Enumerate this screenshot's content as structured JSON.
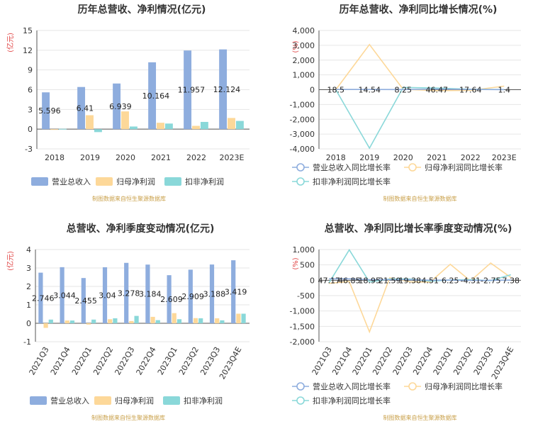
{
  "colors": {
    "revenue": "#8eadde",
    "net": "#fdd899",
    "deducted": "#8ad8d9"
  },
  "source_note": "制图数据来自恒生聚源数据库",
  "chart_data": [
    {
      "type": "bar",
      "title": "历年总营收、净利情况(亿元)",
      "ylabel": "(亿元)",
      "categories": [
        "2018",
        "2019",
        "2020",
        "2021",
        "2022",
        "2023E"
      ],
      "ylim": [
        -3,
        15
      ],
      "yticks": [
        "-3",
        "0",
        "3",
        "6",
        "9",
        "12",
        "15"
      ],
      "legend": [
        "营业总收入",
        "归母净利润",
        "扣非净利润"
      ],
      "series": [
        {
          "name": "营业总收入",
          "values": [
            5.596,
            6.41,
            6.939,
            10.164,
            11.957,
            12.124
          ]
        },
        {
          "name": "归母净利润",
          "values": [
            -0.05,
            2.12,
            2.7,
            0.97,
            0.5,
            1.7
          ]
        },
        {
          "name": "扣非净利润",
          "values": [
            0.05,
            -0.45,
            0.4,
            0.85,
            1.1,
            1.25
          ]
        }
      ],
      "data_labels": [
        "5.596",
        "6.41",
        "6.939",
        "10.164",
        "11.957",
        "12.124"
      ]
    },
    {
      "type": "line",
      "title": "历年总营收、净利同比增长情况(%)",
      "ylabel": "(%)",
      "categories": [
        "2018",
        "2019",
        "2020",
        "2021",
        "2022",
        "2023E"
      ],
      "ylim": [
        -4000,
        4000
      ],
      "yticks": [
        "-4,000",
        "-3,000",
        "-2,000",
        "-1,000",
        "0",
        "1,000",
        "2,000",
        "3,000",
        "4,000"
      ],
      "legend": [
        "营业总收入同比增长率",
        "归母净利润同比增长率",
        "扣非净利润同比增长率"
      ],
      "series": [
        {
          "name": "营业总收入同比增长率",
          "values": [
            18.5,
            14.54,
            8.25,
            46.47,
            17.64,
            1.4
          ]
        },
        {
          "name": "归母净利润同比增长率",
          "values": [
            0,
            3050,
            25,
            -64,
            -48,
            240
          ]
        },
        {
          "name": "扣非净利润同比增长率",
          "values": [
            0,
            -3950,
            150,
            110,
            30,
            12
          ]
        }
      ],
      "data_labels": [
        "18.5",
        "14.54",
        "8.25",
        "46.47",
        "17.64",
        "1.4"
      ]
    },
    {
      "type": "bar",
      "title": "总营收、净利季度变动情况(亿元)",
      "ylabel": "(亿元)",
      "categories": [
        "2021Q3",
        "2021Q4",
        "2022Q1",
        "2022Q2",
        "2022Q3",
        "2022Q4",
        "2023Q1",
        "2023Q2",
        "2023Q3",
        "2023Q4E"
      ],
      "ylim": [
        -1,
        4
      ],
      "yticks": [
        "-1",
        "0",
        "1",
        "2",
        "3",
        "4"
      ],
      "legend": [
        "营业总收入",
        "归母净利润",
        "扣非净利润"
      ],
      "series": [
        {
          "name": "营业总收入",
          "values": [
            2.746,
            3.044,
            2.455,
            3.04,
            3.278,
            3.184,
            2.609,
            2.909,
            3.188,
            3.419
          ]
        },
        {
          "name": "归母净利润",
          "values": [
            -0.25,
            0.15,
            -0.07,
            0.22,
            0.12,
            0.35,
            0.55,
            0.28,
            0.27,
            0.52
          ]
        },
        {
          "name": "扣非净利润",
          "values": [
            0.2,
            0.15,
            0.2,
            0.27,
            0.4,
            0.17,
            0.22,
            0.27,
            0.16,
            0.52
          ]
        }
      ],
      "data_labels": [
        "2.746",
        "3.044",
        "2.455",
        "3.04",
        "3.278",
        "3.184",
        "2.609",
        "2.909",
        "3.188",
        "3.419"
      ]
    },
    {
      "type": "line",
      "title": "总营收、净利同比增长率季度变动情况(%)",
      "ylabel": "(%)",
      "categories": [
        "2021Q3",
        "2021Q4",
        "2022Q1",
        "2022Q2",
        "2022Q3",
        "2022Q4",
        "2023Q1",
        "2023Q2",
        "2023Q3",
        "2023Q4E"
      ],
      "ylim": [
        -2000,
        1000
      ],
      "yticks": [
        "-2,000",
        "-1,500",
        "-1,000",
        "-500",
        "0",
        "500",
        "1,000"
      ],
      "legend": [
        "营业总收入同比增长率",
        "归母净利润同比增长率",
        "扣非净利润同比增长率"
      ],
      "series": [
        {
          "name": "营业总收入同比增长率",
          "values": [
            47.17,
            46.85,
            18.95,
            21.59,
            19.38,
            4.51,
            6.25,
            -4.31,
            -2.75,
            7.38
          ]
        },
        {
          "name": "归母净利润同比增长率",
          "values": [
            -100,
            -40,
            -1680,
            80,
            -50,
            -60,
            520,
            -20,
            560,
            90
          ]
        },
        {
          "name": "扣非净利润同比增长率",
          "values": [
            -80,
            990,
            -60,
            40,
            40,
            -30,
            10,
            20,
            -10,
            180
          ]
        }
      ],
      "data_labels": [
        "47.17",
        "46.85",
        "18.95",
        "21.59",
        "19.38",
        "4.51",
        "6.25",
        "-4.31",
        "-2.75",
        "7.38"
      ]
    }
  ]
}
